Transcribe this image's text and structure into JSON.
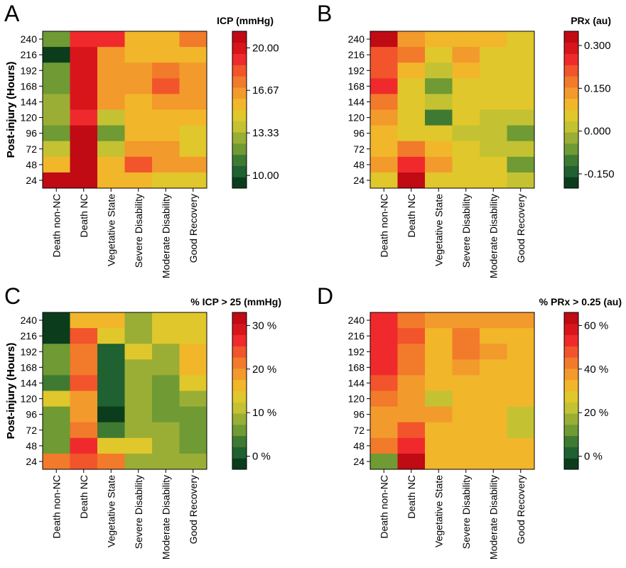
{
  "colors": [
    "#0b3d1c",
    "#1f6130",
    "#3f7a32",
    "#6f9a34",
    "#9aae36",
    "#c4c232",
    "#e0c72b",
    "#f1b62a",
    "#f39a2c",
    "#f27a2b",
    "#f2542c",
    "#f02a2c",
    "#d9151c",
    "#c00a14"
  ],
  "chart_data": [
    {
      "type": "heatmap",
      "panel": "A",
      "title": "ICP (mmHg)",
      "xlabel": "",
      "ylabel": "Post-injury (Hours)",
      "x_categories": [
        "Death non-NC",
        "Death NC",
        "Vegetative State",
        "Severe Disability",
        "Moderate Disability",
        "Good Recovery"
      ],
      "y_categories": [
        "240",
        "216",
        "192",
        "168",
        "144",
        "120",
        "96",
        "72",
        "48",
        "24"
      ],
      "colorbar_range": [
        9.0,
        21.3
      ],
      "colorbar_ticks": [
        20.0,
        16.67,
        13.33,
        10.0
      ],
      "colorbar_tick_labels": [
        "20.00",
        "16.67",
        "13.33",
        "10.00"
      ],
      "values": [
        [
          11.9,
          19.4,
          19.4,
          15.4,
          15.4,
          17.7
        ],
        [
          9.6,
          20.3,
          16.5,
          15.6,
          15.6,
          15.6
        ],
        [
          12.5,
          19.8,
          16.8,
          16.8,
          17.3,
          16.8
        ],
        [
          12.5,
          19.8,
          16.2,
          16.8,
          17.9,
          16.8
        ],
        [
          13.3,
          19.8,
          16.2,
          15.6,
          16.8,
          16.2
        ],
        [
          13.3,
          19.4,
          14.2,
          15.6,
          15.6,
          15.6
        ],
        [
          12.5,
          20.5,
          12.5,
          15.6,
          15.6,
          15.1
        ],
        [
          14.0,
          20.5,
          14.2,
          16.8,
          16.8,
          15.1
        ],
        [
          15.4,
          21.0,
          15.6,
          17.9,
          16.2,
          16.2
        ],
        [
          20.7,
          20.5,
          15.6,
          15.6,
          15.1,
          15.1
        ]
      ]
    },
    {
      "type": "heatmap",
      "panel": "B",
      "title": "PRx (au)",
      "xlabel": "",
      "ylabel": "Post-injury (Hours)",
      "x_categories": [
        "Death non-NC",
        "Death NC",
        "Vegetative State",
        "Severe Disability",
        "Moderate Disability",
        "Good Recovery"
      ],
      "y_categories": [
        "240",
        "216",
        "192",
        "168",
        "144",
        "120",
        "96",
        "72",
        "48",
        "24"
      ],
      "colorbar_range": [
        -0.2,
        0.35
      ],
      "colorbar_ticks": [
        0.3,
        0.15,
        0.0,
        -0.15
      ],
      "colorbar_tick_labels": [
        "0.300",
        "0.150",
        "0.000",
        "-0.150"
      ],
      "values": [
        [
          0.33,
          0.12,
          0.08,
          0.08,
          0.08,
          0.06
        ],
        [
          0.22,
          0.16,
          0.06,
          0.12,
          0.06,
          0.06
        ],
        [
          0.22,
          0.11,
          0.01,
          0.08,
          0.06,
          0.04
        ],
        [
          0.27,
          0.06,
          -0.08,
          0.06,
          0.04,
          0.04
        ],
        [
          0.19,
          0.06,
          0.01,
          0.04,
          0.04,
          0.04
        ],
        [
          0.13,
          0.06,
          -0.12,
          0.04,
          0.01,
          0.01
        ],
        [
          0.08,
          0.06,
          0.06,
          0.01,
          0.01,
          -0.06
        ],
        [
          0.08,
          0.19,
          0.08,
          0.04,
          0.01,
          0.01
        ],
        [
          0.13,
          0.26,
          0.12,
          0.04,
          0.04,
          -0.06
        ],
        [
          0.06,
          0.33,
          0.06,
          0.06,
          0.04,
          0.01
        ]
      ]
    },
    {
      "type": "heatmap",
      "panel": "C",
      "title": "% ICP > 25 (mmHg)",
      "xlabel": "",
      "ylabel": "Post-injury (Hours)",
      "x_categories": [
        "Death non-NC",
        "Death NC",
        "Vegetative State",
        "Severe Disability",
        "Moderate Disability",
        "Good Recovery"
      ],
      "y_categories": [
        "240",
        "216",
        "192",
        "168",
        "144",
        "120",
        "96",
        "72",
        "48",
        "24"
      ],
      "colorbar_range": [
        -3,
        33
      ],
      "colorbar_ticks": [
        30,
        20,
        10,
        0
      ],
      "colorbar_tick_labels": [
        "30 %",
        "20 %",
        "10 %",
        "0 %"
      ],
      "values": [
        [
          -1,
          15,
          15,
          9,
          13,
          13
        ],
        [
          -1,
          25,
          13,
          9,
          13,
          13
        ],
        [
          6,
          22,
          2,
          13,
          9,
          15
        ],
        [
          6,
          22,
          2,
          9,
          9,
          15
        ],
        [
          4,
          25,
          2,
          9,
          6,
          13
        ],
        [
          13,
          18,
          2,
          9,
          6,
          9
        ],
        [
          6,
          18,
          -1,
          9,
          6,
          6
        ],
        [
          6,
          22,
          4,
          9,
          9,
          6
        ],
        [
          6,
          27,
          13,
          13,
          9,
          6
        ],
        [
          22,
          25,
          22,
          9,
          9,
          9
        ]
      ]
    },
    {
      "type": "heatmap",
      "panel": "D",
      "title": "% PRx > 0.25 (au)",
      "xlabel": "",
      "ylabel": "Post-injury (Hours)",
      "x_categories": [
        "Death non-NC",
        "Death NC",
        "Vegetative State",
        "Severe Disability",
        "Moderate Disability",
        "Good Recovery"
      ],
      "y_categories": [
        "240",
        "216",
        "192",
        "168",
        "144",
        "120",
        "96",
        "72",
        "48",
        "24"
      ],
      "colorbar_range": [
        -6,
        66
      ],
      "colorbar_ticks": [
        60,
        40,
        20,
        0
      ],
      "colorbar_tick_labels": [
        "60 %",
        "40 %",
        "20 %",
        "0 %"
      ],
      "values": [
        [
          55,
          42,
          37,
          37,
          37,
          37
        ],
        [
          55,
          50,
          30,
          42,
          34,
          34
        ],
        [
          55,
          42,
          30,
          42,
          37,
          30
        ],
        [
          55,
          42,
          30,
          37,
          34,
          30
        ],
        [
          50,
          37,
          30,
          30,
          30,
          30
        ],
        [
          45,
          37,
          24,
          30,
          30,
          30
        ],
        [
          37,
          37,
          37,
          30,
          30,
          24
        ],
        [
          37,
          50,
          30,
          30,
          30,
          24
        ],
        [
          42,
          55,
          30,
          30,
          30,
          30
        ],
        [
          12,
          62,
          34,
          34,
          30,
          30
        ]
      ]
    }
  ]
}
